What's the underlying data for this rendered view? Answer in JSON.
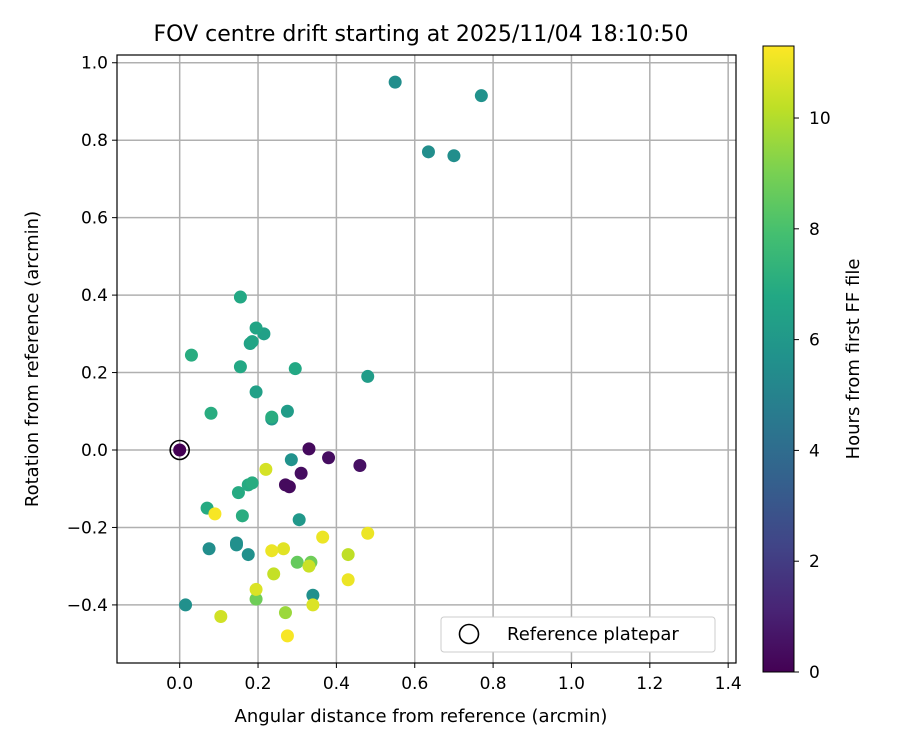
{
  "chart_data": {
    "type": "scatter",
    "title": "FOV centre drift starting at 2025/11/04 18:10:50",
    "xlabel": "Angular distance from reference (arcmin)",
    "ylabel": "Rotation from reference (arcmin)",
    "xlim": [
      -0.16,
      1.42
    ],
    "ylim": [
      -0.55,
      1.02
    ],
    "xticks": [
      0.0,
      0.2,
      0.4,
      0.6,
      0.8,
      1.0,
      1.2,
      1.4
    ],
    "xtick_labels": [
      "0.0",
      "0.2",
      "0.4",
      "0.6",
      "0.8",
      "1.0",
      "1.2",
      "1.4"
    ],
    "yticks": [
      -0.4,
      -0.2,
      0.0,
      0.2,
      0.4,
      0.6,
      0.8,
      1.0
    ],
    "ytick_labels": [
      "−0.4",
      "−0.2",
      "0.0",
      "0.2",
      "0.4",
      "0.6",
      "0.8",
      "1.0"
    ],
    "grid": true,
    "colorbar": {
      "label": "Hours from first FF file",
      "range": [
        0,
        11.3
      ],
      "ticks": [
        0,
        2,
        4,
        6,
        8,
        10
      ],
      "tick_labels": [
        "0",
        "2",
        "4",
        "6",
        "8",
        "10"
      ],
      "colormap": "viridis"
    },
    "legend": {
      "label": "Reference platepar",
      "placement": "lower-right"
    },
    "reference": {
      "x": 0.0,
      "y": 0.0,
      "hours": 0.0
    },
    "points": [
      {
        "x": 0.0,
        "y": 0.0,
        "h": 0.0
      },
      {
        "x": 0.33,
        "y": 0.003,
        "h": 0.3
      },
      {
        "x": 0.38,
        "y": -0.02,
        "h": 0.4
      },
      {
        "x": 0.46,
        "y": -0.04,
        "h": 0.5
      },
      {
        "x": 0.31,
        "y": -0.06,
        "h": 0.4
      },
      {
        "x": 0.27,
        "y": -0.09,
        "h": 0.3
      },
      {
        "x": 0.28,
        "y": -0.095,
        "h": 0.3
      },
      {
        "x": 0.55,
        "y": 0.95,
        "h": 5.5
      },
      {
        "x": 0.77,
        "y": 0.915,
        "h": 5.7
      },
      {
        "x": 0.635,
        "y": 0.77,
        "h": 5.5
      },
      {
        "x": 0.7,
        "y": 0.76,
        "h": 5.5
      },
      {
        "x": 0.015,
        "y": -0.4,
        "h": 5.6
      },
      {
        "x": 0.075,
        "y": -0.255,
        "h": 5.5
      },
      {
        "x": 0.145,
        "y": -0.24,
        "h": 5.5
      },
      {
        "x": 0.145,
        "y": -0.245,
        "h": 5.6
      },
      {
        "x": 0.175,
        "y": -0.27,
        "h": 5.6
      },
      {
        "x": 0.34,
        "y": -0.375,
        "h": 5.6
      },
      {
        "x": 0.285,
        "y": -0.025,
        "h": 5.7
      },
      {
        "x": 0.305,
        "y": -0.18,
        "h": 6.0
      },
      {
        "x": 0.235,
        "y": 0.08,
        "h": 6.0
      },
      {
        "x": 0.275,
        "y": 0.1,
        "h": 6.2
      },
      {
        "x": 0.48,
        "y": 0.19,
        "h": 6.2
      },
      {
        "x": 0.195,
        "y": 0.15,
        "h": 6.4
      },
      {
        "x": 0.215,
        "y": 0.3,
        "h": 6.4
      },
      {
        "x": 0.18,
        "y": 0.275,
        "h": 6.5
      },
      {
        "x": 0.185,
        "y": 0.28,
        "h": 6.6
      },
      {
        "x": 0.195,
        "y": 0.315,
        "h": 6.6
      },
      {
        "x": 0.155,
        "y": 0.395,
        "h": 6.8
      },
      {
        "x": 0.155,
        "y": 0.215,
        "h": 6.8
      },
      {
        "x": 0.295,
        "y": 0.21,
        "h": 6.8
      },
      {
        "x": 0.03,
        "y": 0.245,
        "h": 7.0
      },
      {
        "x": 0.08,
        "y": 0.095,
        "h": 7.0
      },
      {
        "x": 0.235,
        "y": 0.085,
        "h": 7.0
      },
      {
        "x": 0.07,
        "y": -0.15,
        "h": 6.9
      },
      {
        "x": 0.15,
        "y": -0.11,
        "h": 6.9
      },
      {
        "x": 0.175,
        "y": -0.09,
        "h": 6.9
      },
      {
        "x": 0.185,
        "y": -0.085,
        "h": 7.0
      },
      {
        "x": 0.16,
        "y": -0.17,
        "h": 7.0
      },
      {
        "x": 0.3,
        "y": -0.29,
        "h": 8.6
      },
      {
        "x": 0.335,
        "y": -0.29,
        "h": 8.8
      },
      {
        "x": 0.195,
        "y": -0.385,
        "h": 8.8
      },
      {
        "x": 0.27,
        "y": -0.42,
        "h": 9.6
      },
      {
        "x": 0.43,
        "y": -0.27,
        "h": 10.2
      },
      {
        "x": 0.24,
        "y": -0.32,
        "h": 10.3
      },
      {
        "x": 0.33,
        "y": -0.3,
        "h": 10.4
      },
      {
        "x": 0.105,
        "y": -0.43,
        "h": 10.5
      },
      {
        "x": 0.22,
        "y": -0.05,
        "h": 10.6
      },
      {
        "x": 0.34,
        "y": -0.4,
        "h": 10.7
      },
      {
        "x": 0.195,
        "y": -0.36,
        "h": 10.7
      },
      {
        "x": 0.43,
        "y": -0.335,
        "h": 11.0
      },
      {
        "x": 0.265,
        "y": -0.255,
        "h": 10.8
      },
      {
        "x": 0.235,
        "y": -0.26,
        "h": 11.0
      },
      {
        "x": 0.365,
        "y": -0.225,
        "h": 11.0
      },
      {
        "x": 0.48,
        "y": -0.215,
        "h": 11.0
      },
      {
        "x": 0.09,
        "y": -0.165,
        "h": 11.2
      },
      {
        "x": 0.275,
        "y": -0.48,
        "h": 11.2
      }
    ]
  }
}
